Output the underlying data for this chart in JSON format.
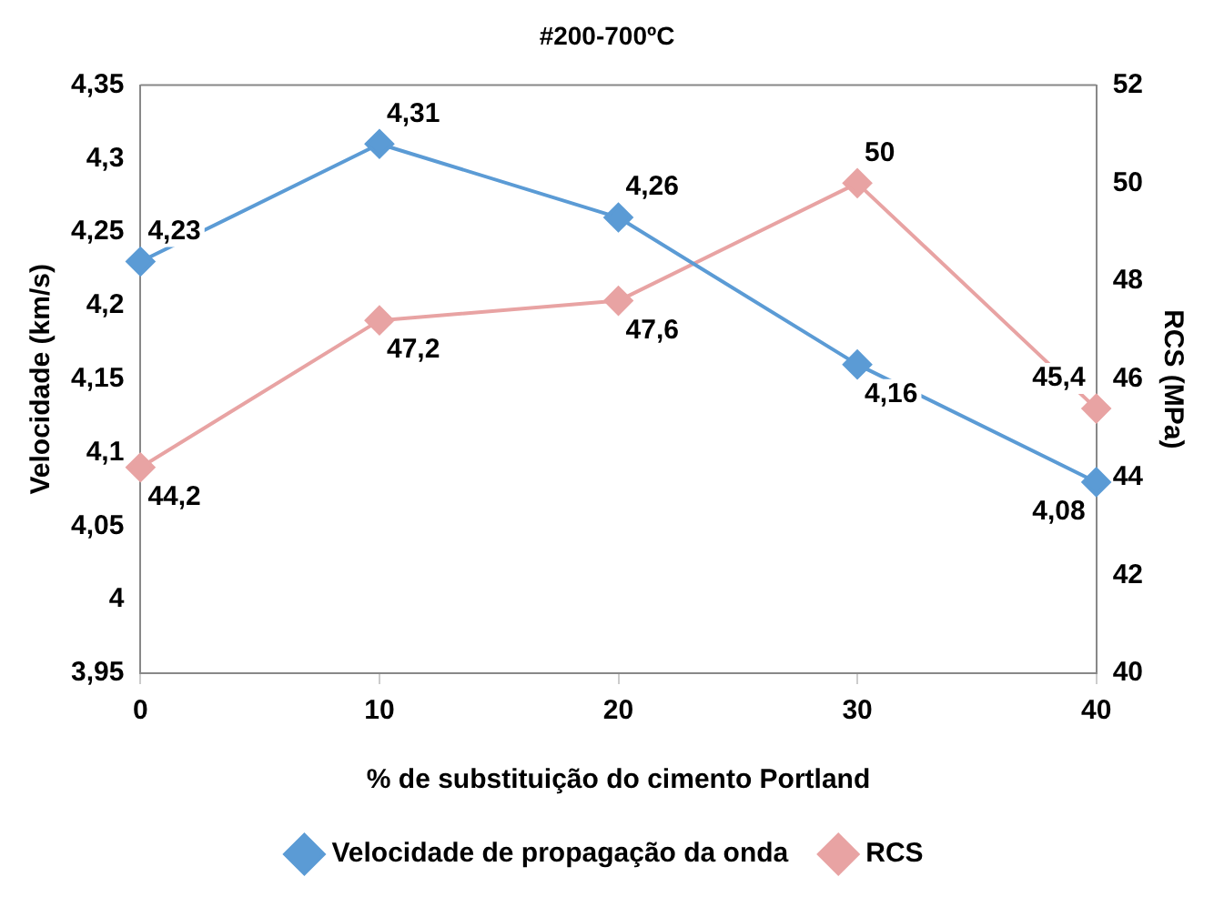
{
  "chart_data": {
    "type": "line",
    "title": "#200-700ºC",
    "xlabel": "% de substituição do cimento Portland",
    "ylabel": "Velocidade (km/s)",
    "y2label": "RCS (MPa)",
    "categories": [
      "0",
      "10",
      "20",
      "30",
      "40"
    ],
    "series": [
      {
        "name": "Velocidade de propagação da onda",
        "color": "#5b9bd5",
        "values": [
          4.23,
          4.31,
          4.26,
          4.16,
          4.08
        ],
        "value_labels": [
          "4,23",
          "4,31",
          "4,26",
          "4,16",
          "4,08"
        ]
      },
      {
        "name": "RCS",
        "color": "#e8a3a3",
        "axis": "y2",
        "values": [
          44.2,
          47.2,
          47.6,
          50,
          45.4
        ],
        "value_labels": [
          "44,2",
          "47,2",
          "47,6",
          "50",
          "45,4"
        ]
      }
    ],
    "ylim": [
      3.95,
      4.35
    ],
    "yticks": [
      {
        "value": 3.95,
        "label": "3,95"
      },
      4,
      {
        "value": 4.05,
        "label": "4,05"
      },
      {
        "value": 4.1,
        "label": "4,1"
      },
      {
        "value": 4.15,
        "label": "4,15"
      },
      {
        "value": 4.2,
        "label": "4,2"
      },
      {
        "value": 4.25,
        "label": "4,25"
      },
      {
        "value": 4.3,
        "label": "4,3"
      },
      {
        "value": 4.35,
        "label": "4,35"
      }
    ],
    "y2lim": [
      40,
      52
    ],
    "y2ticks": [
      40,
      42,
      44,
      46,
      48,
      50,
      52
    ],
    "grid": false,
    "legend": "bottom",
    "marker": "diamond",
    "line_style": "solid"
  }
}
